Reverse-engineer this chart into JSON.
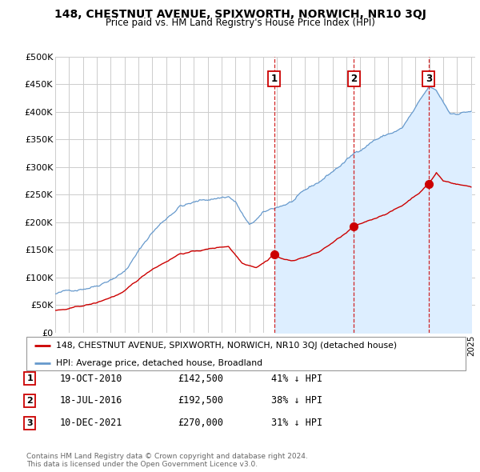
{
  "title": "148, CHESTNUT AVENUE, SPIXWORTH, NORWICH, NR10 3QJ",
  "subtitle": "Price paid vs. HM Land Registry's House Price Index (HPI)",
  "ylim": [
    0,
    500000
  ],
  "yticks": [
    0,
    50000,
    100000,
    150000,
    200000,
    250000,
    300000,
    350000,
    400000,
    450000,
    500000
  ],
  "ytick_labels": [
    "£0",
    "£50K",
    "£100K",
    "£150K",
    "£200K",
    "£250K",
    "£300K",
    "£350K",
    "£400K",
    "£450K",
    "£500K"
  ],
  "sale_color": "#cc0000",
  "hpi_color": "#6699cc",
  "hpi_fill_color": "#ddeeff",
  "background_color": "#ffffff",
  "plot_bg_color": "#ffffff",
  "grid_color": "#cccccc",
  "legend_label_red": "148, CHESTNUT AVENUE, SPIXWORTH, NORWICH, NR10 3QJ (detached house)",
  "legend_label_blue": "HPI: Average price, detached house, Broadland",
  "sale1_year": 2010.79,
  "sale1_price": 142500,
  "sale2_year": 2016.54,
  "sale2_price": 192500,
  "sale3_year": 2021.94,
  "sale3_price": 270000,
  "table_entries": [
    {
      "num": "1",
      "date": "19-OCT-2010",
      "price": "£142,500",
      "hpi": "41% ↓ HPI"
    },
    {
      "num": "2",
      "date": "18-JUL-2016",
      "price": "£192,500",
      "hpi": "38% ↓ HPI"
    },
    {
      "num": "3",
      "date": "10-DEC-2021",
      "price": "£270,000",
      "hpi": "31% ↓ HPI"
    }
  ],
  "footnote": "Contains HM Land Registry data © Crown copyright and database right 2024.\nThis data is licensed under the Open Government Licence v3.0."
}
